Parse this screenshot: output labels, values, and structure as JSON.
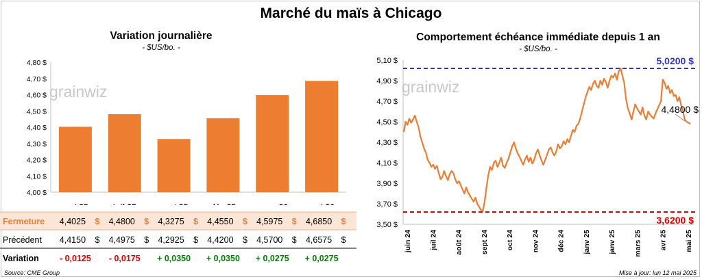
{
  "title": "Marché du maïs à Chicago",
  "colors": {
    "bar": "#ED7D31",
    "line": "#ED7D31",
    "fermeture_bg": "#FBE5D6",
    "high": "#3333CC",
    "low": "#E00000",
    "neg": "#E00000",
    "pos": "#008000"
  },
  "chart_data": [
    {
      "type": "bar",
      "title": "Variation journalière",
      "unit": "- $US/bo. -",
      "categories": [
        "mai 25",
        "juil 25",
        "sept 25",
        "déc 25",
        "mars 26",
        "mai 26"
      ],
      "values": [
        4.4025,
        4.48,
        4.3275,
        4.455,
        4.5975,
        4.685
      ],
      "ylim": [
        4.0,
        4.8
      ],
      "yticks": [
        "4,00 $",
        "4,10 $",
        "4,20 $",
        "4,30 $",
        "4,40 $",
        "4,50 $",
        "4,60 $",
        "4,70 $",
        "4,80 $"
      ],
      "grid": false,
      "watermark": "grainwiz",
      "table": {
        "rows": [
          {
            "label": "Fermeture",
            "values": [
              "4,4025",
              "4,4800",
              "4,3275",
              "4,4550",
              "4,5975",
              "4,6850"
            ],
            "suffix": "$"
          },
          {
            "label": "Précédent",
            "values": [
              "4,4150",
              "4,4975",
              "4,2925",
              "4,4200",
              "4,5700",
              "4,6575"
            ],
            "suffix": "$"
          },
          {
            "label": "Variation",
            "values": [
              "- 0,0125",
              "- 0,0175",
              "+ 0,0350",
              "+ 0,0350",
              "+ 0,0275",
              "+ 0,0275"
            ],
            "sign": [
              "neg",
              "neg",
              "pos",
              "pos",
              "pos",
              "pos"
            ]
          }
        ]
      }
    },
    {
      "type": "line",
      "title": "Comportement  échéance immédiate depuis 1 an",
      "unit": "- $US/bo. -",
      "ylim": [
        3.5,
        5.1
      ],
      "yticks": [
        "3,50 $",
        "3,70 $",
        "3,90 $",
        "4,10 $",
        "4,30 $",
        "4,50 $",
        "4,70 $",
        "4,90 $",
        "5,10 $"
      ],
      "xticks": [
        "juin 24",
        "juil 24",
        "août 24",
        "sept 24",
        "oct 24",
        "nov 24",
        "déc 24",
        "janv 25",
        "janv 25",
        "mars 25",
        "avr 25",
        "mai 25"
      ],
      "grid": false,
      "watermark": "grainwiz",
      "high": {
        "value": 5.02,
        "label": "5,0200 $"
      },
      "low": {
        "value": 3.62,
        "label": "3,6200 $"
      },
      "last": {
        "value": 4.48,
        "label": "4,4800 $"
      },
      "series": [
        {
          "values": [
            4.4,
            4.5,
            4.47,
            4.53,
            4.49,
            4.52,
            4.56,
            4.5,
            4.45,
            4.36,
            4.3,
            4.24,
            4.2,
            4.13,
            4.1,
            4.06,
            4.08,
            4.04,
            4.07,
            4.0,
            3.94,
            3.96,
            4.02,
            3.97,
            3.93,
            3.99,
            4.02,
            4.0,
            3.94,
            3.9,
            3.92,
            3.88,
            3.84,
            3.8,
            3.86,
            3.81,
            3.78,
            3.75,
            3.72,
            3.76,
            3.7,
            3.67,
            3.64,
            3.63,
            3.72,
            3.86,
            3.98,
            4.06,
            4.03,
            4.1,
            4.12,
            4.06,
            4.1,
            4.15,
            4.07,
            4.05,
            4.1,
            4.14,
            4.2,
            4.26,
            4.3,
            4.24,
            4.19,
            4.16,
            4.12,
            4.08,
            4.13,
            4.17,
            4.11,
            4.15,
            4.09,
            4.13,
            4.19,
            4.23,
            4.17,
            4.12,
            4.08,
            4.13,
            4.18,
            4.23,
            4.25,
            4.2,
            4.17,
            4.21,
            4.28,
            4.24,
            4.26,
            4.31,
            4.28,
            4.33,
            4.3,
            4.36,
            4.42,
            4.4,
            4.46,
            4.48,
            4.53,
            4.6,
            4.67,
            4.74,
            4.79,
            4.84,
            4.81,
            4.87,
            4.9,
            4.85,
            4.83,
            4.9,
            4.86,
            4.92,
            4.89,
            4.83,
            4.9,
            4.95,
            4.93,
            4.97,
            4.91,
            4.99,
            5.02,
            4.95,
            4.88,
            4.72,
            4.63,
            4.58,
            4.52,
            4.6,
            4.67,
            4.63,
            4.6,
            4.57,
            4.64,
            4.56,
            4.52,
            4.6,
            4.57,
            4.55,
            4.53,
            4.58,
            4.62,
            4.66,
            4.7,
            4.91,
            4.88,
            4.82,
            4.85,
            4.78,
            4.81,
            4.75,
            4.76,
            4.7,
            4.74,
            4.66,
            4.6,
            4.52,
            4.5,
            4.49,
            4.48
          ]
        }
      ]
    }
  ],
  "footer": {
    "source": "Source: CME Group",
    "updated": "Mise à jour: lun 12 mai 2025"
  }
}
